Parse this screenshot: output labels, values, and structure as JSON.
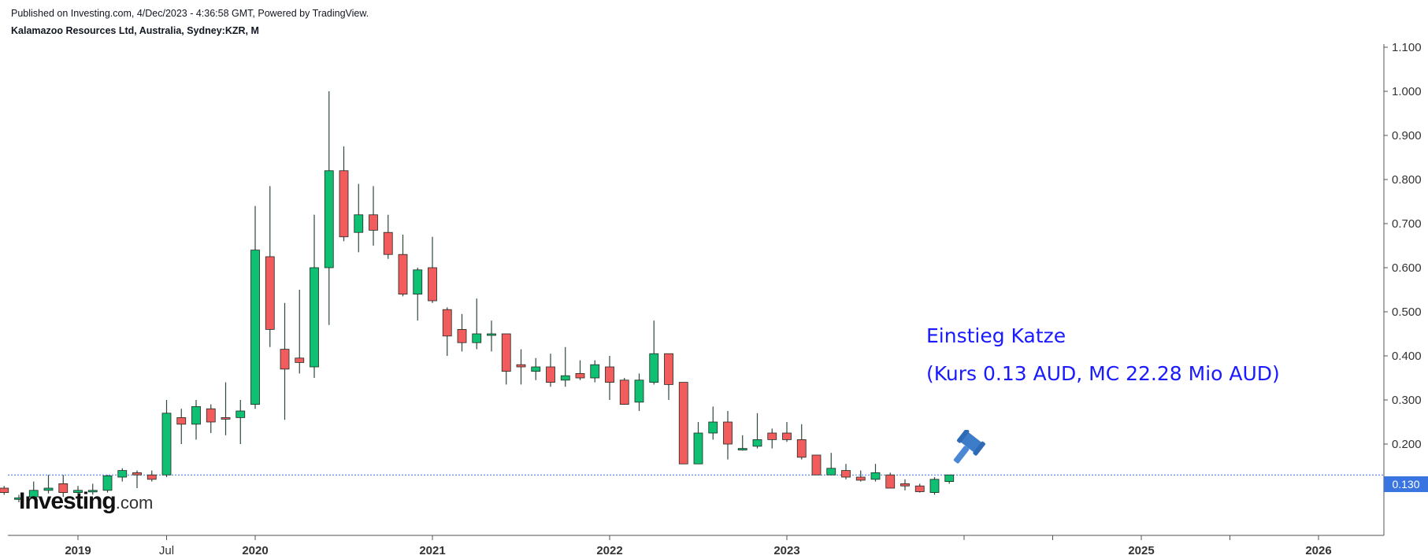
{
  "header": {
    "published": "Published on Investing.com, 4/Dec/2023 - 4:36:58 GMT, Powered by TradingView.",
    "instrument": "Kalamazoo Resources Ltd, Australia, Sydney:KZR, M"
  },
  "logo": {
    "brand": "Investing",
    "suffix": ".com"
  },
  "annotation": {
    "line1": "Einstieg Katze",
    "line2": "(Kurs 0.13 AUD, MC 22.28 Mio AUD)",
    "icon": "gavel-icon"
  },
  "price_line": {
    "label": "0.130",
    "value": 0.13
  },
  "colors": {
    "up": "#0fbf72",
    "down": "#f25c5c",
    "wick": "#2d4a3a",
    "price_line": "#3a74e0",
    "annotation": "#1a1aff"
  },
  "chart_data": {
    "type": "candlestick",
    "title": "Kalamazoo Resources Ltd, Australia, Sydney:KZR, M",
    "ylim": [
      0.0,
      1.1
    ],
    "y_ticks": [
      "0.100",
      "0.200",
      "0.300",
      "0.400",
      "0.500",
      "0.600",
      "0.700",
      "0.800",
      "0.900",
      "1.000",
      "1.100"
    ],
    "x_labels": [
      {
        "label": "2019",
        "month": 1
      },
      {
        "label": "Jul",
        "month": 7
      },
      {
        "label": "2020",
        "month": 13
      },
      {
        "label": "2021",
        "month": 25
      },
      {
        "label": "2022",
        "month": 37
      },
      {
        "label": "2023",
        "month": 49
      },
      {
        "label": "2025",
        "month": 73
      },
      {
        "label": "2026",
        "month": 85
      }
    ],
    "candles": [
      {
        "m": -4,
        "o": 0.1,
        "h": 0.105,
        "l": 0.085,
        "c": 0.09
      },
      {
        "m": -3,
        "o": 0.075,
        "h": 0.085,
        "l": 0.068,
        "c": 0.078
      },
      {
        "m": -2,
        "o": 0.08,
        "h": 0.115,
        "l": 0.075,
        "c": 0.095
      },
      {
        "m": -1,
        "o": 0.095,
        "h": 0.13,
        "l": 0.088,
        "c": 0.1
      },
      {
        "m": 0,
        "o": 0.11,
        "h": 0.13,
        "l": 0.08,
        "c": 0.09
      },
      {
        "m": 1,
        "o": 0.09,
        "h": 0.105,
        "l": 0.08,
        "c": 0.095
      },
      {
        "m": 2,
        "o": 0.095,
        "h": 0.11,
        "l": 0.085,
        "c": 0.095
      },
      {
        "m": 3,
        "o": 0.095,
        "h": 0.13,
        "l": 0.09,
        "c": 0.128
      },
      {
        "m": 4,
        "o": 0.125,
        "h": 0.145,
        "l": 0.115,
        "c": 0.14
      },
      {
        "m": 5,
        "o": 0.135,
        "h": 0.14,
        "l": 0.1,
        "c": 0.13
      },
      {
        "m": 6,
        "o": 0.13,
        "h": 0.14,
        "l": 0.115,
        "c": 0.12
      },
      {
        "m": 7,
        "o": 0.13,
        "h": 0.3,
        "l": 0.125,
        "c": 0.27
      },
      {
        "m": 8,
        "o": 0.26,
        "h": 0.28,
        "l": 0.2,
        "c": 0.245
      },
      {
        "m": 9,
        "o": 0.245,
        "h": 0.3,
        "l": 0.21,
        "c": 0.285
      },
      {
        "m": 10,
        "o": 0.28,
        "h": 0.29,
        "l": 0.225,
        "c": 0.25
      },
      {
        "m": 11,
        "o": 0.26,
        "h": 0.34,
        "l": 0.22,
        "c": 0.258
      },
      {
        "m": 12,
        "o": 0.26,
        "h": 0.3,
        "l": 0.2,
        "c": 0.275
      },
      {
        "m": 13,
        "o": 0.29,
        "h": 0.74,
        "l": 0.28,
        "c": 0.64
      },
      {
        "m": 14,
        "o": 0.625,
        "h": 0.785,
        "l": 0.42,
        "c": 0.46
      },
      {
        "m": 15,
        "o": 0.415,
        "h": 0.52,
        "l": 0.255,
        "c": 0.37
      },
      {
        "m": 16,
        "o": 0.395,
        "h": 0.55,
        "l": 0.36,
        "c": 0.385
      },
      {
        "m": 17,
        "o": 0.375,
        "h": 0.72,
        "l": 0.35,
        "c": 0.6
      },
      {
        "m": 18,
        "o": 0.6,
        "h": 1.0,
        "l": 0.47,
        "c": 0.82
      },
      {
        "m": 19,
        "o": 0.82,
        "h": 0.875,
        "l": 0.66,
        "c": 0.67
      },
      {
        "m": 20,
        "o": 0.68,
        "h": 0.79,
        "l": 0.635,
        "c": 0.72
      },
      {
        "m": 21,
        "o": 0.72,
        "h": 0.785,
        "l": 0.65,
        "c": 0.685
      },
      {
        "m": 22,
        "o": 0.68,
        "h": 0.72,
        "l": 0.62,
        "c": 0.63
      },
      {
        "m": 23,
        "o": 0.63,
        "h": 0.675,
        "l": 0.535,
        "c": 0.54
      },
      {
        "m": 24,
        "o": 0.54,
        "h": 0.6,
        "l": 0.48,
        "c": 0.595
      },
      {
        "m": 25,
        "o": 0.6,
        "h": 0.67,
        "l": 0.52,
        "c": 0.525
      },
      {
        "m": 26,
        "o": 0.505,
        "h": 0.51,
        "l": 0.4,
        "c": 0.445
      },
      {
        "m": 27,
        "o": 0.46,
        "h": 0.495,
        "l": 0.41,
        "c": 0.43
      },
      {
        "m": 28,
        "o": 0.43,
        "h": 0.53,
        "l": 0.415,
        "c": 0.45
      },
      {
        "m": 29,
        "o": 0.45,
        "h": 0.48,
        "l": 0.41,
        "c": 0.45
      },
      {
        "m": 30,
        "o": 0.45,
        "h": 0.45,
        "l": 0.335,
        "c": 0.365
      },
      {
        "m": 31,
        "o": 0.38,
        "h": 0.415,
        "l": 0.335,
        "c": 0.375
      },
      {
        "m": 32,
        "o": 0.365,
        "h": 0.395,
        "l": 0.345,
        "c": 0.375
      },
      {
        "m": 33,
        "o": 0.375,
        "h": 0.405,
        "l": 0.33,
        "c": 0.34
      },
      {
        "m": 34,
        "o": 0.345,
        "h": 0.42,
        "l": 0.33,
        "c": 0.355
      },
      {
        "m": 35,
        "o": 0.36,
        "h": 0.39,
        "l": 0.345,
        "c": 0.35
      },
      {
        "m": 36,
        "o": 0.35,
        "h": 0.39,
        "l": 0.34,
        "c": 0.38
      },
      {
        "m": 37,
        "o": 0.375,
        "h": 0.4,
        "l": 0.3,
        "c": 0.34
      },
      {
        "m": 38,
        "o": 0.345,
        "h": 0.35,
        "l": 0.29,
        "c": 0.29
      },
      {
        "m": 39,
        "o": 0.295,
        "h": 0.36,
        "l": 0.275,
        "c": 0.345
      },
      {
        "m": 40,
        "o": 0.34,
        "h": 0.48,
        "l": 0.335,
        "c": 0.405
      },
      {
        "m": 41,
        "o": 0.405,
        "h": 0.405,
        "l": 0.3,
        "c": 0.335
      },
      {
        "m": 42,
        "o": 0.34,
        "h": 0.34,
        "l": 0.155,
        "c": 0.155
      },
      {
        "m": 43,
        "o": 0.155,
        "h": 0.25,
        "l": 0.155,
        "c": 0.225
      },
      {
        "m": 44,
        "o": 0.225,
        "h": 0.285,
        "l": 0.21,
        "c": 0.25
      },
      {
        "m": 45,
        "o": 0.25,
        "h": 0.275,
        "l": 0.165,
        "c": 0.2
      },
      {
        "m": 46,
        "o": 0.19,
        "h": 0.22,
        "l": 0.185,
        "c": 0.19
      },
      {
        "m": 47,
        "o": 0.195,
        "h": 0.27,
        "l": 0.19,
        "c": 0.21
      },
      {
        "m": 48,
        "o": 0.225,
        "h": 0.235,
        "l": 0.19,
        "c": 0.21
      },
      {
        "m": 49,
        "o": 0.225,
        "h": 0.25,
        "l": 0.205,
        "c": 0.21
      },
      {
        "m": 50,
        "o": 0.21,
        "h": 0.245,
        "l": 0.165,
        "c": 0.17
      },
      {
        "m": 51,
        "o": 0.175,
        "h": 0.175,
        "l": 0.13,
        "c": 0.13
      },
      {
        "m": 52,
        "o": 0.13,
        "h": 0.18,
        "l": 0.13,
        "c": 0.145
      },
      {
        "m": 53,
        "o": 0.14,
        "h": 0.155,
        "l": 0.12,
        "c": 0.125
      },
      {
        "m": 54,
        "o": 0.125,
        "h": 0.14,
        "l": 0.115,
        "c": 0.118
      },
      {
        "m": 55,
        "o": 0.12,
        "h": 0.155,
        "l": 0.115,
        "c": 0.135
      },
      {
        "m": 56,
        "o": 0.13,
        "h": 0.135,
        "l": 0.1,
        "c": 0.1
      },
      {
        "m": 57,
        "o": 0.11,
        "h": 0.12,
        "l": 0.095,
        "c": 0.105
      },
      {
        "m": 58,
        "o": 0.105,
        "h": 0.11,
        "l": 0.09,
        "c": 0.092
      },
      {
        "m": 59,
        "o": 0.09,
        "h": 0.125,
        "l": 0.085,
        "c": 0.12
      },
      {
        "m": 60,
        "o": 0.115,
        "h": 0.13,
        "l": 0.11,
        "c": 0.13
      }
    ]
  }
}
